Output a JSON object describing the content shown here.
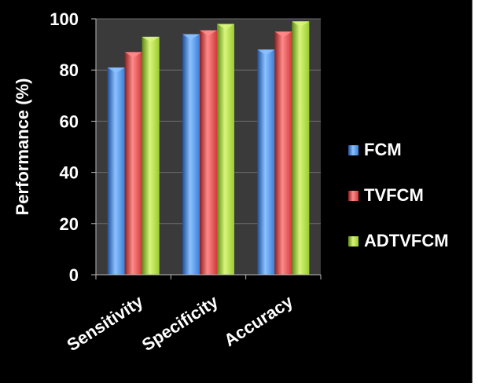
{
  "chart_data": {
    "type": "bar",
    "title": "",
    "xlabel": "",
    "ylabel": "Performance (%)",
    "ylim": [
      0,
      100
    ],
    "yticks": [
      0,
      20,
      40,
      60,
      80,
      100
    ],
    "categories": [
      "Sensitivity",
      "Specificity",
      "Accuracy"
    ],
    "series": [
      {
        "name": "FCM",
        "values": [
          81,
          94,
          88
        ],
        "color": "#3a7fd9",
        "color_light": "#8cc1ff",
        "color_dark": "#1f4f99"
      },
      {
        "name": "TVFCM",
        "values": [
          87,
          95.5,
          95
        ],
        "color": "#d13a3a",
        "color_light": "#ff8a8a",
        "color_dark": "#8e1f1f"
      },
      {
        "name": "ADTVFCM",
        "values": [
          93,
          98,
          99
        ],
        "color": "#9bcc2e",
        "color_light": "#d8f57c",
        "color_dark": "#5f8a14"
      }
    ],
    "grid": true,
    "legend": "right",
    "plot_background": "#3a3a3a"
  }
}
